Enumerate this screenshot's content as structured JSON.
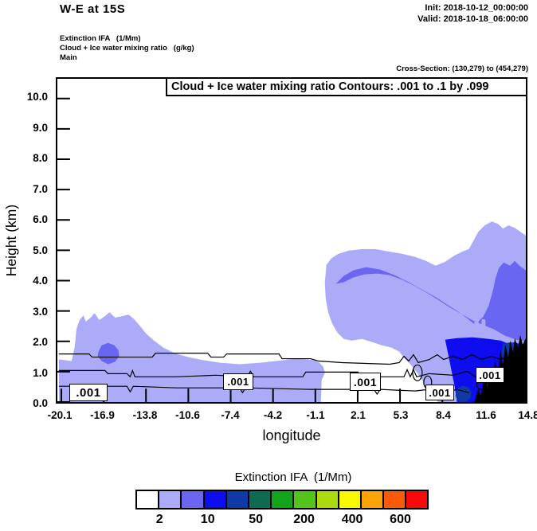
{
  "header": {
    "title": "W-E at 15S",
    "init": "Init: 2018-10-12_00:00:00",
    "valid": "Valid: 2018-10-18_06:00:00"
  },
  "fields": {
    "field1": "Extinction IFA   (1/Mm)",
    "field2": "Cloud + Ice water mixing ratio   (g/kg)",
    "field3": "Main"
  },
  "cross_section": "Cross-Section: (130,279) to (454,279)",
  "plot": {
    "contour_title": "Cloud + Ice water mixing ratio Contours: .001 to .1 by .099",
    "xlabel": "longitude",
    "ylabel": "Height (km)",
    "yticks": [
      "10.0",
      "9.0",
      "8.0",
      "7.0",
      "6.0",
      "5.0",
      "4.0",
      "3.0",
      "2.0",
      "1.0",
      "0.0"
    ],
    "xticks": [
      "-20.1",
      "-16.9",
      "-13.8",
      "-10.6",
      "-7.4",
      "-4.2",
      "-1.1",
      "2.1",
      "5.3",
      "8.4",
      "11.6",
      "14.8"
    ],
    "contour_label": ".001"
  },
  "colorbar": {
    "title": "Extinction IFA  (1/Mm)",
    "cells": [
      "#FFFFFF",
      "#ABABF8",
      "#6B66F2",
      "#0D0DF0",
      "#0D3AA6",
      "#0E6B52",
      "#12A41B",
      "#52C41A",
      "#ABDB0E",
      "#F8F800",
      "#FCA405",
      "#FA5A0A",
      "#F80A0A"
    ],
    "labels": [
      "2",
      "10",
      "50",
      "200",
      "400",
      "600"
    ]
  },
  "chart_data": {
    "type": "heatmap",
    "title": "Cloud + Ice water mixing ratio Contours: .001 to .1 by .099",
    "subtitle": "W-E at 15S",
    "xlabel": "longitude",
    "ylabel": "Height (km)",
    "x_ticks": [
      -20.1,
      -16.9,
      -13.8,
      -10.6,
      -7.4,
      -4.2,
      -1.1,
      2.1,
      5.3,
      8.4,
      11.6,
      14.8
    ],
    "y_ticks": [
      0.0,
      1.0,
      2.0,
      3.0,
      4.0,
      5.0,
      6.0,
      7.0,
      8.0,
      9.0,
      10.0
    ],
    "xlim": [
      -20.4,
      14.8
    ],
    "ylim": [
      0.0,
      10.65
    ],
    "grid": false,
    "legend_position": "bottom",
    "init_time": "2018-10-12_00:00:00",
    "valid_time": "2018-10-18_06:00:00",
    "cross_section_points": "(130,279) to (454,279)",
    "fill_field": {
      "name": "Extinction IFA",
      "units": "1/Mm",
      "labeled_levels": [
        2,
        10,
        50,
        200,
        400,
        600
      ],
      "palette": [
        "#FFFFFF",
        "#ABABF8",
        "#6B66F2",
        "#0D0DF0",
        "#0D3AA6",
        "#0E6B52",
        "#12A41B",
        "#52C41A",
        "#ABDB0E",
        "#F8F800",
        "#FCA405",
        "#FA5A0A",
        "#F80A0A"
      ]
    },
    "contour_field": {
      "name": "Cloud + Ice water mixing ratio",
      "units": "g/kg",
      "levels": [
        0.001,
        0.1
      ],
      "visible_labels": [
        ".001",
        ".001",
        ".001",
        ".001",
        ".001"
      ]
    },
    "shaded_regions": [
      {
        "value_range": "2-5 1/Mm",
        "description": "shallow layer below ~1.2 km from lon -20.1 to about -2.3, with a hill reaching ~2.3 km between lon -19 and -14"
      },
      {
        "value_range": "5-10 1/Mm",
        "description": "small blob near lon -17 around 1.3-1.9 km"
      },
      {
        "value_range": "2-5 1/Mm",
        "description": "elevated cloud deck lon -0.7 to 14.8 between ~2 and ~5.9 km, descending toward the surface east of lon 7"
      },
      {
        "value_range": "5-10 1/Mm",
        "description": "core band sloping from ~4 km near lon 1 down to ~1.5 km near lon 13"
      },
      {
        "value_range": "10-30 1/Mm",
        "description": "low-level maximum below ~2 km between lon 9 and 13.5"
      },
      {
        "value_range": "30-50 1/Mm",
        "description": "small patches near the surface around lon 10-11 and lon 13-14"
      },
      {
        "value_range": "terrain",
        "description": "black terrain silhouette near the surface from lon ~11.5 to 14.8 rising to ~2 km"
      }
    ]
  }
}
